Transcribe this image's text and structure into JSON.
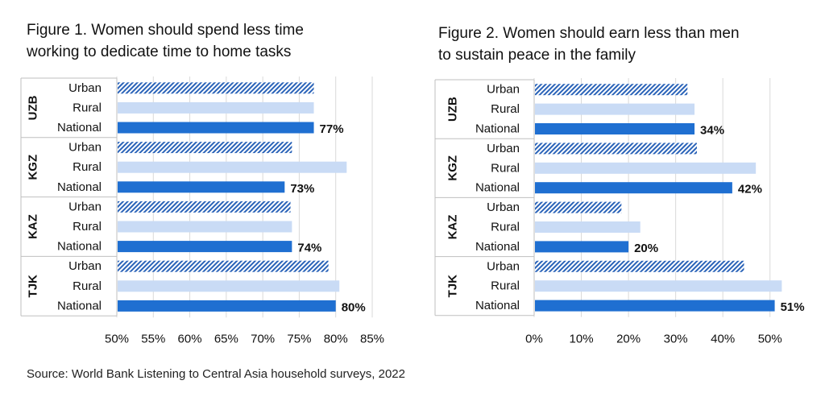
{
  "chart_data": [
    {
      "type": "bar",
      "orientation": "horizontal",
      "title_lines": [
        "Figure 1. Women should spend less time",
        "working to dedicate time to home tasks"
      ],
      "groups": [
        {
          "name": "UZB",
          "rows": [
            {
              "category": "Urban",
              "value": 77,
              "style": "hatched"
            },
            {
              "category": "Rural",
              "value": 77,
              "style": "light"
            },
            {
              "category": "National",
              "value": 77,
              "style": "solid",
              "label": "77%"
            }
          ]
        },
        {
          "name": "KGZ",
          "rows": [
            {
              "category": "Urban",
              "value": 74,
              "style": "hatched"
            },
            {
              "category": "Rural",
              "value": 81.5,
              "style": "light"
            },
            {
              "category": "National",
              "value": 73,
              "style": "solid",
              "label": "73%"
            }
          ]
        },
        {
          "name": "KAZ",
          "rows": [
            {
              "category": "Urban",
              "value": 73.8,
              "style": "hatched"
            },
            {
              "category": "Rural",
              "value": 74,
              "style": "light"
            },
            {
              "category": "National",
              "value": 74,
              "style": "solid",
              "label": "74%"
            }
          ]
        },
        {
          "name": "TJK",
          "rows": [
            {
              "category": "Urban",
              "value": 79,
              "style": "hatched"
            },
            {
              "category": "Rural",
              "value": 80.5,
              "style": "light"
            },
            {
              "category": "National",
              "value": 80,
              "style": "solid",
              "label": "80%"
            }
          ]
        }
      ],
      "xlim": [
        50,
        85
      ],
      "xticks": [
        50,
        55,
        60,
        65,
        70,
        75,
        80,
        85
      ],
      "xtick_labels": [
        "50%",
        "55%",
        "60%",
        "65%",
        "70%",
        "75%",
        "80%",
        "85%"
      ],
      "grid": "vertical"
    },
    {
      "type": "bar",
      "orientation": "horizontal",
      "title_lines": [
        "Figure 2. Women should earn less than men",
        "to sustain peace in the family"
      ],
      "groups": [
        {
          "name": "UZB",
          "rows": [
            {
              "category": "Urban",
              "value": 32.5,
              "style": "hatched"
            },
            {
              "category": "Rural",
              "value": 34,
              "style": "light"
            },
            {
              "category": "National",
              "value": 34,
              "style": "solid",
              "label": "34%"
            }
          ]
        },
        {
          "name": "KGZ",
          "rows": [
            {
              "category": "Urban",
              "value": 34.5,
              "style": "hatched"
            },
            {
              "category": "Rural",
              "value": 47,
              "style": "light"
            },
            {
              "category": "National",
              "value": 42,
              "style": "solid",
              "label": "42%"
            }
          ]
        },
        {
          "name": "KAZ",
          "rows": [
            {
              "category": "Urban",
              "value": 18.5,
              "style": "hatched"
            },
            {
              "category": "Rural",
              "value": 22.5,
              "style": "light"
            },
            {
              "category": "National",
              "value": 20,
              "style": "solid",
              "label": "20%"
            }
          ]
        },
        {
          "name": "TJK",
          "rows": [
            {
              "category": "Urban",
              "value": 44.5,
              "style": "hatched"
            },
            {
              "category": "Rural",
              "value": 52.5,
              "style": "light"
            },
            {
              "category": "National",
              "value": 51,
              "style": "solid",
              "label": "51%"
            }
          ]
        }
      ],
      "xlim": [
        0,
        55
      ],
      "xticks": [
        0,
        10,
        20,
        30,
        40,
        50
      ],
      "xtick_labels": [
        "0%",
        "10%",
        "20%",
        "30%",
        "40%",
        "50%"
      ],
      "grid": "vertical"
    }
  ],
  "colors": {
    "solid": "#1f6fd1",
    "light": "#c9dbf5",
    "hatch": "#2a63b8",
    "grid": "#d9d9d9",
    "divider": "#bfbfbf"
  },
  "source": "Source: World Bank Listening to Central Asia household surveys, 2022"
}
